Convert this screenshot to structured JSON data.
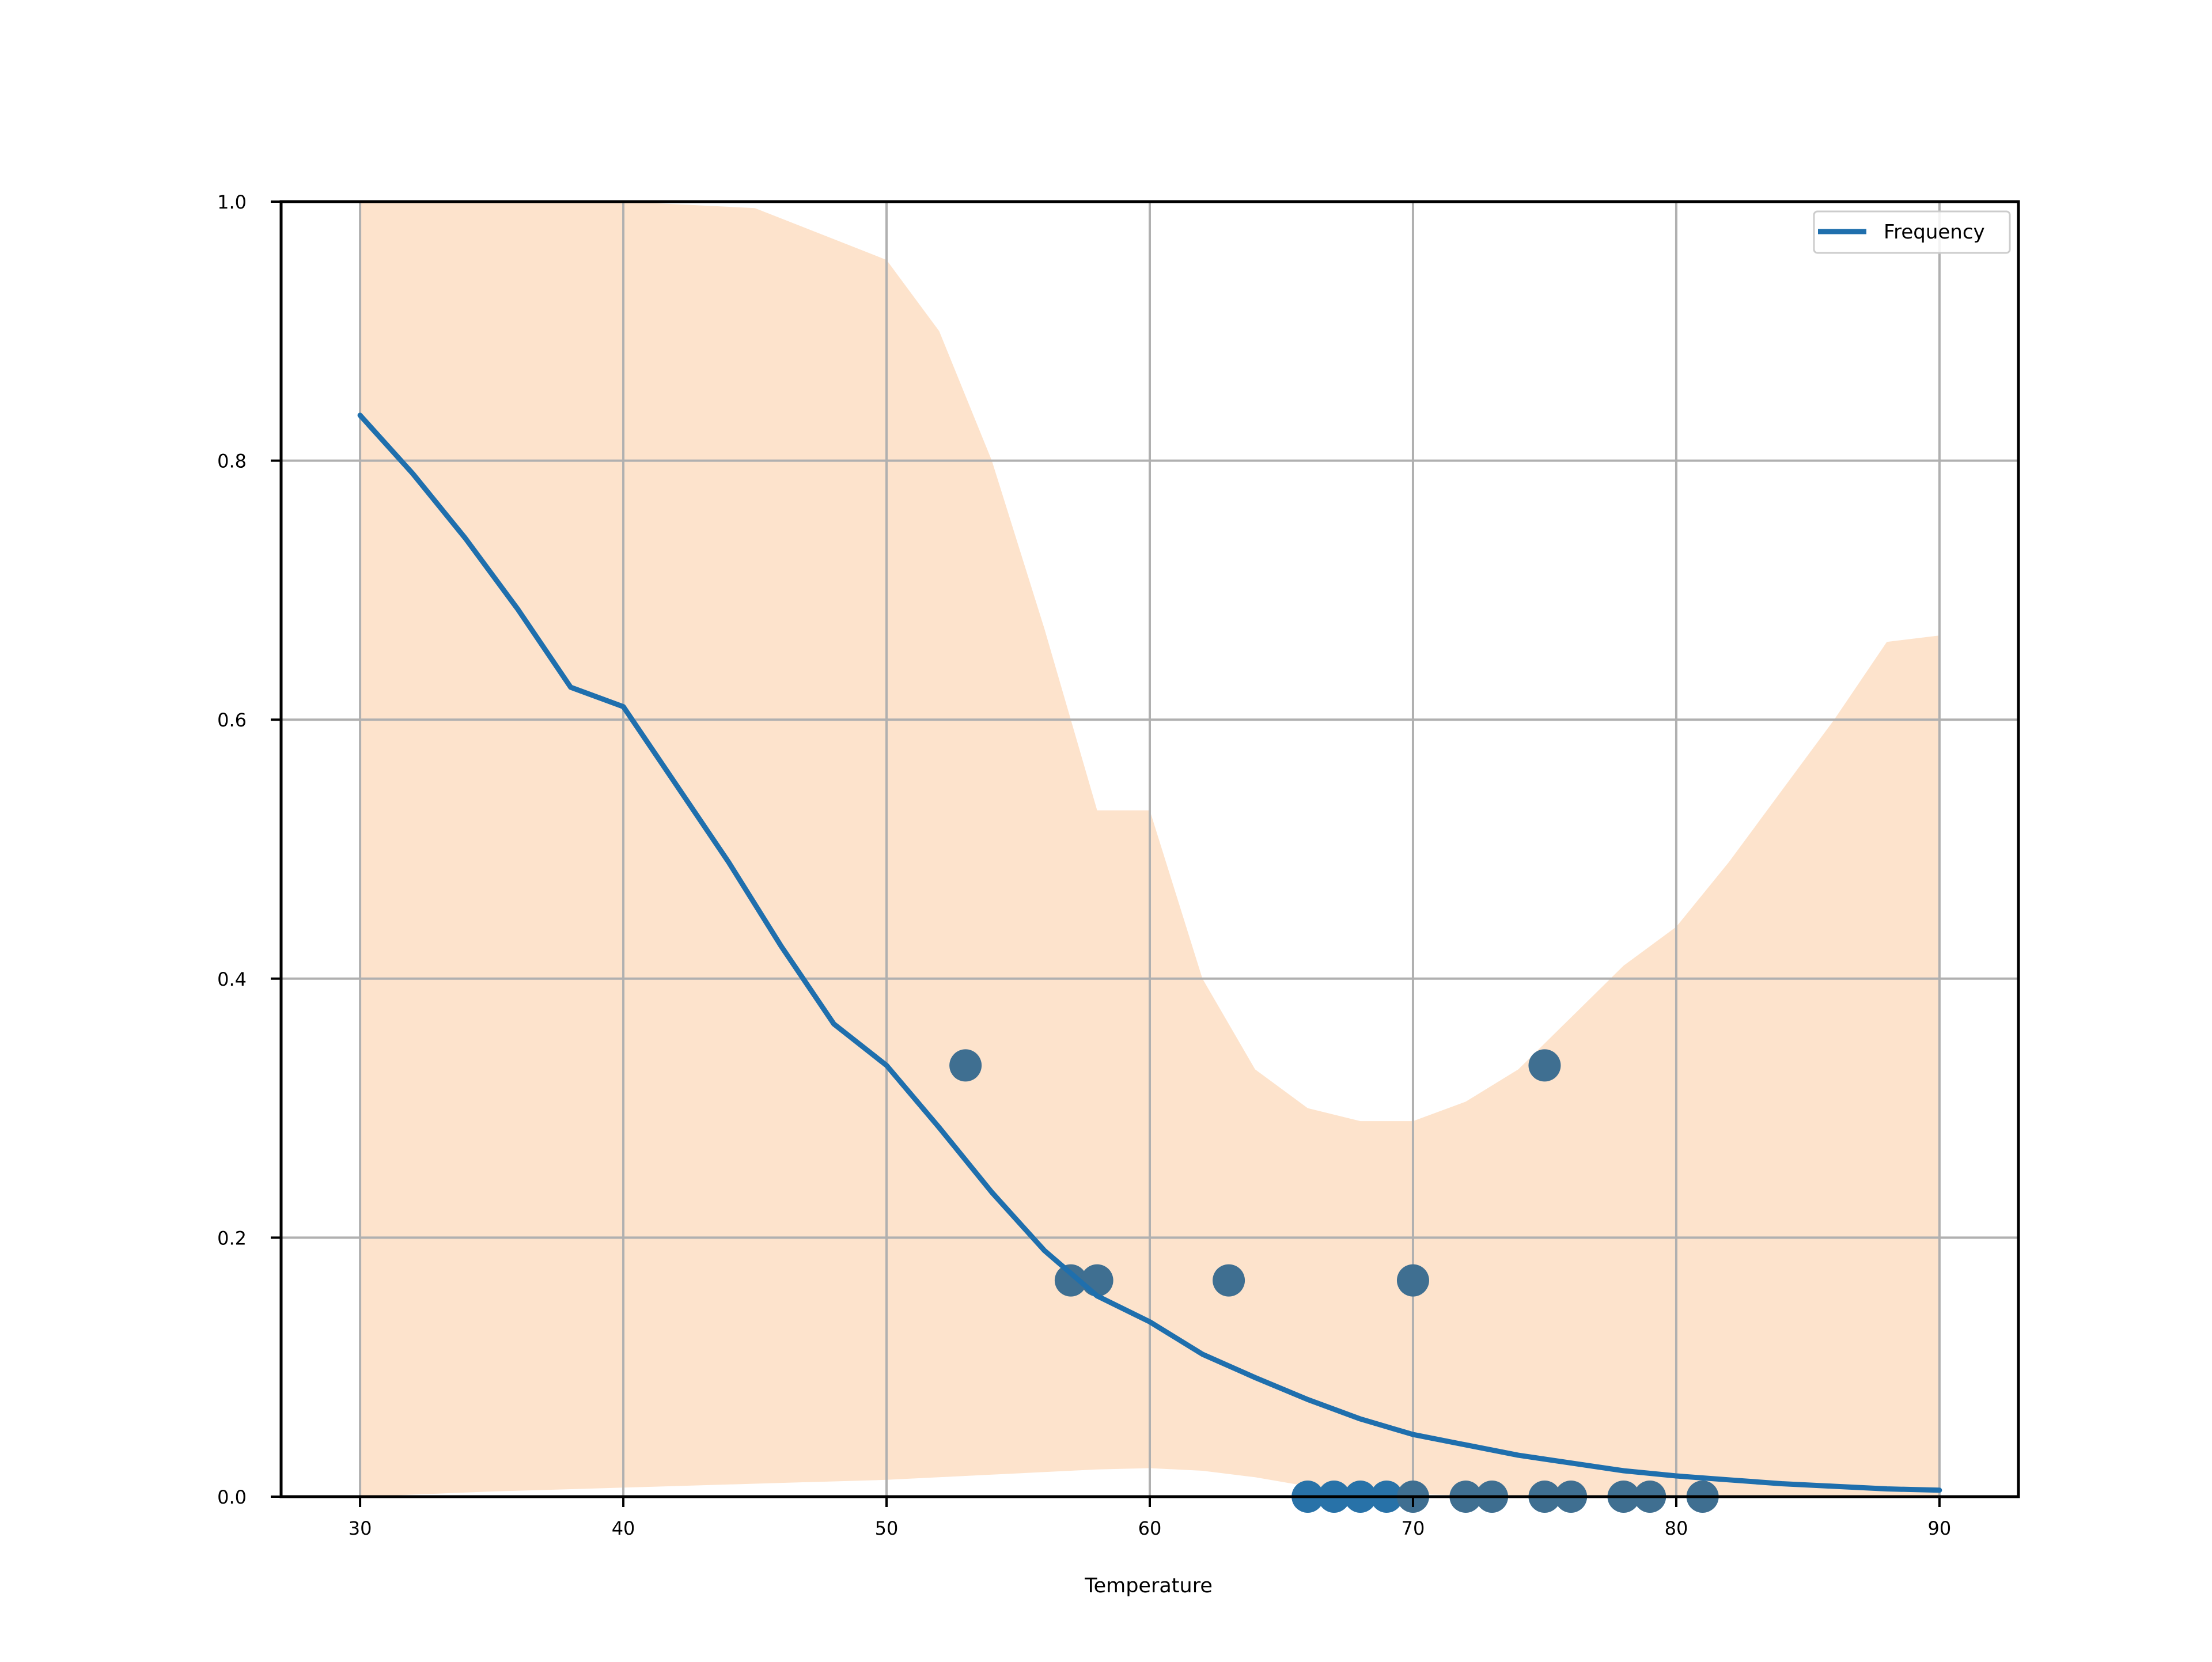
{
  "chart_data": {
    "type": "scatter",
    "title": "",
    "xlabel": "Temperature",
    "ylabel": "",
    "xlim": [
      27,
      93
    ],
    "ylim": [
      0.0,
      1.0
    ],
    "x_ticks": [
      30,
      40,
      50,
      60,
      70,
      80,
      90
    ],
    "x_tick_labels": [
      "30",
      "40",
      "50",
      "60",
      "70",
      "80",
      "90"
    ],
    "y_ticks": [
      0.0,
      0.2,
      0.4,
      0.6,
      0.8,
      1.0
    ],
    "y_tick_labels": [
      "0.0",
      "0.2",
      "0.4",
      "0.6",
      "0.8",
      "1.0"
    ],
    "grid": true,
    "legend": {
      "position": "top-right",
      "entries": [
        "Frequency"
      ]
    },
    "colors": {
      "line": "#1f6fad",
      "points": "#3f6f91",
      "band": "#fde3cc",
      "grid": "#b0b0b0",
      "axes": "#000000"
    },
    "series": [
      {
        "name": "Frequency",
        "kind": "line",
        "x": [
          30,
          32,
          34,
          36,
          38,
          40,
          42,
          44,
          46,
          48,
          50,
          52,
          54,
          56,
          58,
          60,
          62,
          64,
          66,
          68,
          70,
          72,
          74,
          76,
          78,
          80,
          82,
          84,
          86,
          88,
          90
        ],
        "y": [
          0.835,
          0.79,
          0.74,
          0.685,
          0.625,
          0.61,
          0.55,
          0.49,
          0.425,
          0.365,
          0.333,
          0.285,
          0.235,
          0.19,
          0.155,
          0.135,
          0.11,
          0.092,
          0.075,
          0.06,
          0.048,
          0.04,
          0.032,
          0.026,
          0.02,
          0.016,
          0.013,
          0.01,
          0.008,
          0.006,
          0.005
        ]
      },
      {
        "kind": "scatter",
        "x": [
          53,
          57,
          58,
          63,
          70,
          75,
          66,
          67,
          68,
          69,
          70,
          72,
          73,
          75,
          76,
          78,
          79,
          81
        ],
        "y": [
          0.333,
          0.167,
          0.167,
          0.167,
          0.167,
          0.333,
          0,
          0,
          0,
          0,
          0,
          0,
          0,
          0,
          0,
          0,
          0,
          0
        ]
      },
      {
        "kind": "band",
        "x": [
          30,
          35,
          40,
          45,
          50,
          52,
          54,
          56,
          58,
          60,
          62,
          64,
          66,
          68,
          70,
          72,
          74,
          76,
          78,
          80,
          82,
          84,
          86,
          88,
          90
        ],
        "upper": [
          1.0,
          1.0,
          1.0,
          0.995,
          0.955,
          0.9,
          0.8,
          0.67,
          0.53,
          0.53,
          0.4,
          0.33,
          0.3,
          0.29,
          0.29,
          0.305,
          0.33,
          0.37,
          0.41,
          0.44,
          0.49,
          0.545,
          0.6,
          0.66,
          0.665
        ],
        "lower": [
          0.0,
          0.004,
          0.007,
          0.01,
          0.013,
          0.015,
          0.017,
          0.019,
          0.021,
          0.022,
          0.02,
          0.015,
          0.008,
          0.004,
          0.002,
          0.001,
          0.0,
          0.0,
          0.0,
          0.0,
          0.0,
          0.0,
          0.0,
          0.0,
          0.0
        ]
      }
    ]
  }
}
